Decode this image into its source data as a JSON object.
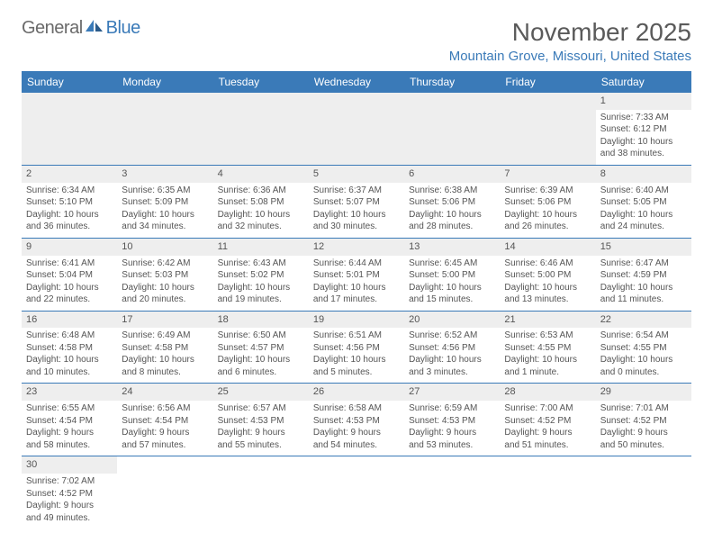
{
  "logo": {
    "text1": "General",
    "text2": "Blue"
  },
  "title": "November 2025",
  "location": "Mountain Grove, Missouri, United States",
  "colors": {
    "header_bg": "#3a7ab8",
    "header_text": "#ffffff",
    "daynum_bg": "#eeeeee",
    "text": "#555555",
    "border": "#3a7ab8"
  },
  "dayHeaders": [
    "Sunday",
    "Monday",
    "Tuesday",
    "Wednesday",
    "Thursday",
    "Friday",
    "Saturday"
  ],
  "weeks": [
    [
      null,
      null,
      null,
      null,
      null,
      null,
      {
        "n": "1",
        "sunrise": "7:33 AM",
        "sunset": "6:12 PM",
        "dl1": "Daylight: 10 hours",
        "dl2": "and 38 minutes."
      }
    ],
    [
      {
        "n": "2",
        "sunrise": "6:34 AM",
        "sunset": "5:10 PM",
        "dl1": "Daylight: 10 hours",
        "dl2": "and 36 minutes."
      },
      {
        "n": "3",
        "sunrise": "6:35 AM",
        "sunset": "5:09 PM",
        "dl1": "Daylight: 10 hours",
        "dl2": "and 34 minutes."
      },
      {
        "n": "4",
        "sunrise": "6:36 AM",
        "sunset": "5:08 PM",
        "dl1": "Daylight: 10 hours",
        "dl2": "and 32 minutes."
      },
      {
        "n": "5",
        "sunrise": "6:37 AM",
        "sunset": "5:07 PM",
        "dl1": "Daylight: 10 hours",
        "dl2": "and 30 minutes."
      },
      {
        "n": "6",
        "sunrise": "6:38 AM",
        "sunset": "5:06 PM",
        "dl1": "Daylight: 10 hours",
        "dl2": "and 28 minutes."
      },
      {
        "n": "7",
        "sunrise": "6:39 AM",
        "sunset": "5:06 PM",
        "dl1": "Daylight: 10 hours",
        "dl2": "and 26 minutes."
      },
      {
        "n": "8",
        "sunrise": "6:40 AM",
        "sunset": "5:05 PM",
        "dl1": "Daylight: 10 hours",
        "dl2": "and 24 minutes."
      }
    ],
    [
      {
        "n": "9",
        "sunrise": "6:41 AM",
        "sunset": "5:04 PM",
        "dl1": "Daylight: 10 hours",
        "dl2": "and 22 minutes."
      },
      {
        "n": "10",
        "sunrise": "6:42 AM",
        "sunset": "5:03 PM",
        "dl1": "Daylight: 10 hours",
        "dl2": "and 20 minutes."
      },
      {
        "n": "11",
        "sunrise": "6:43 AM",
        "sunset": "5:02 PM",
        "dl1": "Daylight: 10 hours",
        "dl2": "and 19 minutes."
      },
      {
        "n": "12",
        "sunrise": "6:44 AM",
        "sunset": "5:01 PM",
        "dl1": "Daylight: 10 hours",
        "dl2": "and 17 minutes."
      },
      {
        "n": "13",
        "sunrise": "6:45 AM",
        "sunset": "5:00 PM",
        "dl1": "Daylight: 10 hours",
        "dl2": "and 15 minutes."
      },
      {
        "n": "14",
        "sunrise": "6:46 AM",
        "sunset": "5:00 PM",
        "dl1": "Daylight: 10 hours",
        "dl2": "and 13 minutes."
      },
      {
        "n": "15",
        "sunrise": "6:47 AM",
        "sunset": "4:59 PM",
        "dl1": "Daylight: 10 hours",
        "dl2": "and 11 minutes."
      }
    ],
    [
      {
        "n": "16",
        "sunrise": "6:48 AM",
        "sunset": "4:58 PM",
        "dl1": "Daylight: 10 hours",
        "dl2": "and 10 minutes."
      },
      {
        "n": "17",
        "sunrise": "6:49 AM",
        "sunset": "4:58 PM",
        "dl1": "Daylight: 10 hours",
        "dl2": "and 8 minutes."
      },
      {
        "n": "18",
        "sunrise": "6:50 AM",
        "sunset": "4:57 PM",
        "dl1": "Daylight: 10 hours",
        "dl2": "and 6 minutes."
      },
      {
        "n": "19",
        "sunrise": "6:51 AM",
        "sunset": "4:56 PM",
        "dl1": "Daylight: 10 hours",
        "dl2": "and 5 minutes."
      },
      {
        "n": "20",
        "sunrise": "6:52 AM",
        "sunset": "4:56 PM",
        "dl1": "Daylight: 10 hours",
        "dl2": "and 3 minutes."
      },
      {
        "n": "21",
        "sunrise": "6:53 AM",
        "sunset": "4:55 PM",
        "dl1": "Daylight: 10 hours",
        "dl2": "and 1 minute."
      },
      {
        "n": "22",
        "sunrise": "6:54 AM",
        "sunset": "4:55 PM",
        "dl1": "Daylight: 10 hours",
        "dl2": "and 0 minutes."
      }
    ],
    [
      {
        "n": "23",
        "sunrise": "6:55 AM",
        "sunset": "4:54 PM",
        "dl1": "Daylight: 9 hours",
        "dl2": "and 58 minutes."
      },
      {
        "n": "24",
        "sunrise": "6:56 AM",
        "sunset": "4:54 PM",
        "dl1": "Daylight: 9 hours",
        "dl2": "and 57 minutes."
      },
      {
        "n": "25",
        "sunrise": "6:57 AM",
        "sunset": "4:53 PM",
        "dl1": "Daylight: 9 hours",
        "dl2": "and 55 minutes."
      },
      {
        "n": "26",
        "sunrise": "6:58 AM",
        "sunset": "4:53 PM",
        "dl1": "Daylight: 9 hours",
        "dl2": "and 54 minutes."
      },
      {
        "n": "27",
        "sunrise": "6:59 AM",
        "sunset": "4:53 PM",
        "dl1": "Daylight: 9 hours",
        "dl2": "and 53 minutes."
      },
      {
        "n": "28",
        "sunrise": "7:00 AM",
        "sunset": "4:52 PM",
        "dl1": "Daylight: 9 hours",
        "dl2": "and 51 minutes."
      },
      {
        "n": "29",
        "sunrise": "7:01 AM",
        "sunset": "4:52 PM",
        "dl1": "Daylight: 9 hours",
        "dl2": "and 50 minutes."
      }
    ],
    [
      {
        "n": "30",
        "sunrise": "7:02 AM",
        "sunset": "4:52 PM",
        "dl1": "Daylight: 9 hours",
        "dl2": "and 49 minutes."
      },
      null,
      null,
      null,
      null,
      null,
      null
    ]
  ],
  "labels": {
    "sunrise": "Sunrise:",
    "sunset": "Sunset:"
  }
}
